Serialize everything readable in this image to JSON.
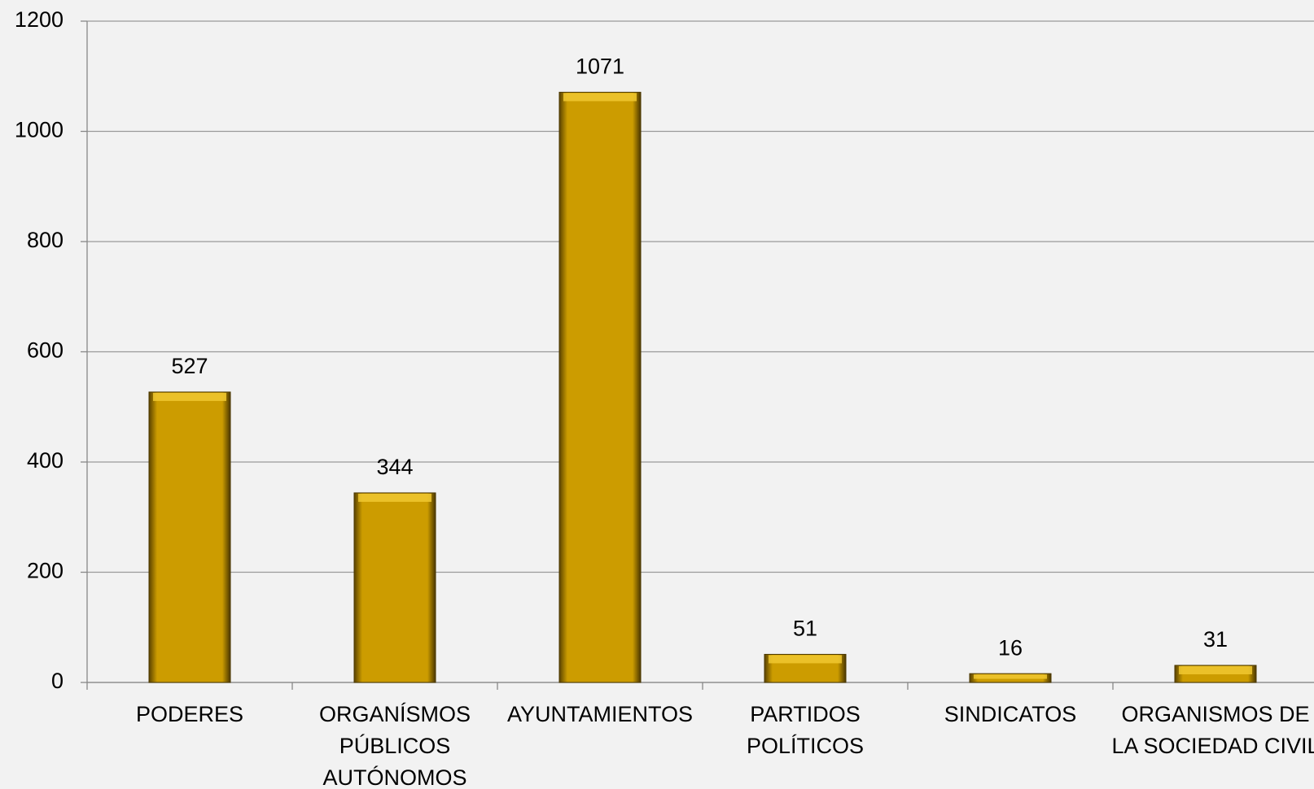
{
  "chart_data": {
    "type": "bar",
    "categories": [
      "PODERES",
      "ORGANÍSMOS\nPÚBLICOS\nAUTÓNOMOS",
      "AYUNTAMIENTOS",
      "PARTIDOS\nPOLÍTICOS",
      "SINDICATOS",
      "ORGANISMOS DE\nLA SOCIEDAD CIVIL"
    ],
    "values": [
      527,
      344,
      1071,
      51,
      16,
      31
    ],
    "color": "#cc9c00",
    "ylim": [
      0,
      1200
    ],
    "yticks": [
      0,
      200,
      400,
      600,
      800,
      1000,
      1200
    ],
    "grid": true
  }
}
